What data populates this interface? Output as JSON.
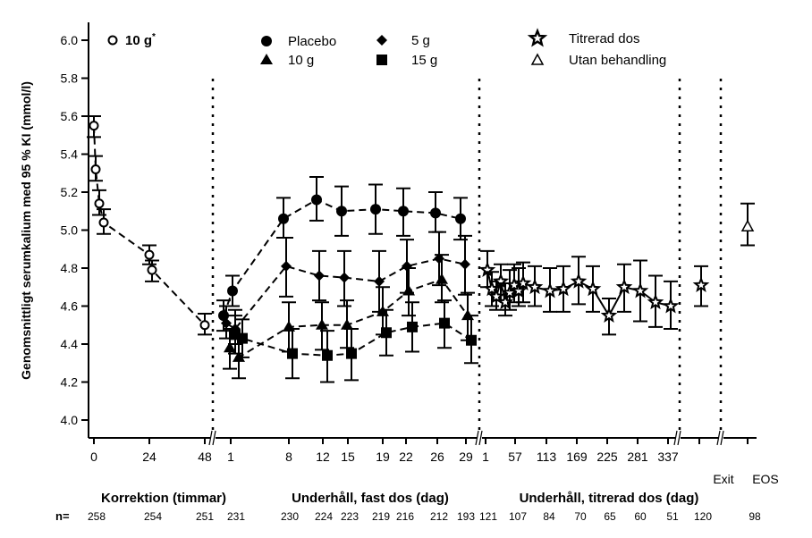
{
  "chart_data": {
    "type": "line",
    "title": "",
    "ylabel": "Genomsnittligt serumkalium med 95 % KI (mmol/l)",
    "ylim": [
      4.0,
      6.0
    ],
    "yticks": [
      "4.0",
      "4.2",
      "4.4",
      "4.6",
      "4.8",
      "5.0",
      "5.2",
      "5.4",
      "5.6",
      "5.8",
      "6.0"
    ],
    "grid": false,
    "legend_position": "top",
    "legend": [
      {
        "key": "placebo",
        "label": "Placebo",
        "marker": "filled-circle"
      },
      {
        "key": "g5",
        "label": "5 g",
        "marker": "filled-diamond"
      },
      {
        "key": "titrated",
        "label": "Titrerad dos",
        "marker": "star"
      },
      {
        "key": "g10",
        "label": "10 g",
        "marker": "filled-triangle"
      },
      {
        "key": "g15",
        "label": "15 g",
        "marker": "filled-square"
      },
      {
        "key": "untreated",
        "label": "Utan behandling",
        "marker": "open-triangle"
      }
    ],
    "correction_legend": {
      "label": "10 g",
      "superscript": "*",
      "marker": "open-circle"
    },
    "xtick_labels": [
      "0",
      "24",
      "48",
      "1",
      "8",
      "12",
      "15",
      "19",
      "22",
      "26",
      "29",
      "1",
      "57",
      "113",
      "169",
      "225",
      "281",
      "337",
      "Exit",
      "EOS"
    ],
    "sections": [
      {
        "label": "Korrektion (timmar)"
      },
      {
        "label": "Underhåll, fast dos (dag)"
      },
      {
        "label": "Underhåll, titrerad dos (dag)"
      }
    ],
    "n_label": "n=",
    "n_values": [
      "258",
      "254",
      "251",
      "231",
      "230",
      "224",
      "223",
      "219",
      "216",
      "212",
      "193",
      "121",
      "107",
      "84",
      "70",
      "65",
      "60",
      "51",
      "120",
      "98"
    ],
    "series": [
      {
        "name": "10 g* (korrektion)",
        "key": "corr",
        "points": [
          {
            "x": "0 h",
            "y": 5.55,
            "lo": 5.49,
            "hi": 5.6
          },
          {
            "x": "~1 h",
            "y": 5.32,
            "lo": 5.26,
            "hi": 5.39
          },
          {
            "x": "~2 h",
            "y": 5.14,
            "lo": 5.08,
            "hi": 5.21
          },
          {
            "x": "~4 h",
            "y": 5.04,
            "lo": 4.98,
            "hi": 5.11
          },
          {
            "x": "24 h",
            "y": 4.87,
            "lo": 4.82,
            "hi": 4.92
          },
          {
            "x": "~26 h",
            "y": 4.79,
            "lo": 4.73,
            "hi": 4.84
          },
          {
            "x": "48 h",
            "y": 4.5,
            "lo": 4.45,
            "hi": 4.56
          }
        ]
      },
      {
        "name": "Placebo",
        "key": "placebo",
        "points": [
          {
            "x": "0",
            "y": 4.55,
            "lo": 4.47,
            "hi": 4.63
          },
          {
            "x": "1",
            "y": 4.68,
            "lo": 4.6,
            "hi": 4.76
          },
          {
            "x": "8",
            "y": 5.06,
            "lo": 4.96,
            "hi": 5.17
          },
          {
            "x": "12",
            "y": 5.16,
            "lo": 5.05,
            "hi": 5.28
          },
          {
            "x": "15",
            "y": 5.1,
            "lo": 4.97,
            "hi": 5.23
          },
          {
            "x": "19",
            "y": 5.11,
            "lo": 4.98,
            "hi": 5.24
          },
          {
            "x": "22",
            "y": 5.1,
            "lo": 4.97,
            "hi": 5.22
          },
          {
            "x": "26",
            "y": 5.09,
            "lo": 4.99,
            "hi": 5.2
          },
          {
            "x": "29",
            "y": 5.06,
            "lo": 4.95,
            "hi": 5.17
          }
        ]
      },
      {
        "name": "5 g",
        "key": "g5",
        "points": [
          {
            "x": "0",
            "y": 4.51,
            "lo": 4.43,
            "hi": 4.6
          },
          {
            "x": "1",
            "y": 4.48,
            "lo": 4.4,
            "hi": 4.58
          },
          {
            "x": "8",
            "y": 4.81,
            "lo": 4.65,
            "hi": 4.96
          },
          {
            "x": "12",
            "y": 4.76,
            "lo": 4.63,
            "hi": 4.89
          },
          {
            "x": "15",
            "y": 4.75,
            "lo": 4.6,
            "hi": 4.89
          },
          {
            "x": "19",
            "y": 4.73,
            "lo": 4.57,
            "hi": 4.89
          },
          {
            "x": "22",
            "y": 4.81,
            "lo": 4.67,
            "hi": 4.95
          },
          {
            "x": "26",
            "y": 4.85,
            "lo": 4.71,
            "hi": 4.99
          },
          {
            "x": "29",
            "y": 4.82,
            "lo": 4.66,
            "hi": 4.97
          }
        ]
      },
      {
        "name": "10 g",
        "key": "g10",
        "points": [
          {
            "x": "0",
            "y": 4.38,
            "lo": 4.27,
            "hi": 4.48
          },
          {
            "x": "1",
            "y": 4.33,
            "lo": 4.22,
            "hi": 4.45
          },
          {
            "x": "8",
            "y": 4.49,
            "lo": 4.36,
            "hi": 4.62
          },
          {
            "x": "12",
            "y": 4.5,
            "lo": 4.37,
            "hi": 4.62
          },
          {
            "x": "15",
            "y": 4.5,
            "lo": 4.38,
            "hi": 4.63
          },
          {
            "x": "19",
            "y": 4.57,
            "lo": 4.45,
            "hi": 4.7
          },
          {
            "x": "22",
            "y": 4.68,
            "lo": 4.55,
            "hi": 4.8
          },
          {
            "x": "26",
            "y": 4.74,
            "lo": 4.62,
            "hi": 4.87
          },
          {
            "x": "29",
            "y": 4.55,
            "lo": 4.42,
            "hi": 4.67
          }
        ]
      },
      {
        "name": "15 g",
        "key": "g15",
        "points": [
          {
            "x": "0",
            "y": 4.45,
            "lo": 4.35,
            "hi": 4.55
          },
          {
            "x": "1",
            "y": 4.43,
            "lo": 4.33,
            "hi": 4.53
          },
          {
            "x": "8",
            "y": 4.35,
            "lo": 4.22,
            "hi": 4.48
          },
          {
            "x": "12",
            "y": 4.34,
            "lo": 4.2,
            "hi": 4.47
          },
          {
            "x": "15",
            "y": 4.35,
            "lo": 4.21,
            "hi": 4.48
          },
          {
            "x": "19",
            "y": 4.46,
            "lo": 4.34,
            "hi": 4.58
          },
          {
            "x": "22",
            "y": 4.49,
            "lo": 4.36,
            "hi": 4.62
          },
          {
            "x": "26",
            "y": 4.51,
            "lo": 4.38,
            "hi": 4.63
          },
          {
            "x": "29",
            "y": 4.42,
            "lo": 4.3,
            "hi": 4.55
          }
        ]
      },
      {
        "name": "Titrerad dos",
        "key": "titrated",
        "points": [
          {
            "x": "1",
            "y": 4.79,
            "lo": 4.7,
            "hi": 4.89
          },
          {
            "x": "8",
            "y": 4.69,
            "lo": 4.6,
            "hi": 4.78
          },
          {
            "x": "15",
            "y": 4.65,
            "lo": 4.58,
            "hi": 4.73
          },
          {
            "x": "22",
            "y": 4.73,
            "lo": 4.63,
            "hi": 4.82
          },
          {
            "x": "29",
            "y": 4.62,
            "lo": 4.55,
            "hi": 4.72
          },
          {
            "x": "36",
            "y": 4.67,
            "lo": 4.58,
            "hi": 4.79
          },
          {
            "x": "43",
            "y": 4.71,
            "lo": 4.62,
            "hi": 4.82
          },
          {
            "x": "50",
            "y": 4.68,
            "lo": 4.6,
            "hi": 4.8
          },
          {
            "x": "57",
            "y": 4.72,
            "lo": 4.62,
            "hi": 4.83
          },
          {
            "x": "85",
            "y": 4.7,
            "lo": 4.6,
            "hi": 4.81
          },
          {
            "x": "113",
            "y": 4.68,
            "lo": 4.57,
            "hi": 4.8
          },
          {
            "x": "141",
            "y": 4.69,
            "lo": 4.57,
            "hi": 4.81
          },
          {
            "x": "169",
            "y": 4.73,
            "lo": 4.61,
            "hi": 4.86
          },
          {
            "x": "197",
            "y": 4.69,
            "lo": 4.57,
            "hi": 4.81
          },
          {
            "x": "225",
            "y": 4.55,
            "lo": 4.45,
            "hi": 4.64
          },
          {
            "x": "253",
            "y": 4.7,
            "lo": 4.57,
            "hi": 4.82
          },
          {
            "x": "281",
            "y": 4.68,
            "lo": 4.52,
            "hi": 4.84
          },
          {
            "x": "309",
            "y": 4.62,
            "lo": 4.49,
            "hi": 4.76
          },
          {
            "x": "337",
            "y": 4.6,
            "lo": 4.48,
            "hi": 4.73
          },
          {
            "x": "Exit",
            "y": 4.71,
            "lo": 4.6,
            "hi": 4.81
          }
        ]
      },
      {
        "name": "Utan behandling",
        "key": "untreated",
        "points": [
          {
            "x": "EOS",
            "y": 5.02,
            "lo": 4.92,
            "hi": 5.14
          }
        ]
      }
    ]
  }
}
